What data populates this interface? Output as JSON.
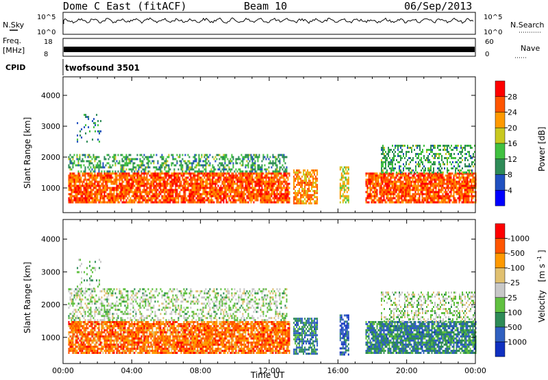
{
  "header": {
    "station": "Dome C East (fitACF)",
    "beam": "Beam 10",
    "date": "06/Sep/2013"
  },
  "status_panels": {
    "nsky_label": "N.Sky",
    "nsky_ticks": [
      "10^5",
      "10^0"
    ],
    "nsearch_label": "N.Search",
    "nsearch_ticks": [
      "10^5",
      "10^0"
    ],
    "freq_label_1": "Freq.",
    "freq_label_2": "[MHz]",
    "freq_ticks": [
      "18",
      "8"
    ],
    "nave_label": "Nave",
    "nave_ticks": [
      "60",
      "0"
    ],
    "cpid_label": "CPID",
    "cpid_value": "twofsound 3501"
  },
  "chart_data": [
    {
      "type": "heatmap",
      "panel": "power",
      "ylabel": "Slant Range [km]",
      "yticks": [
        "1000",
        "2000",
        "3000",
        "4000"
      ],
      "ylim": [
        200,
        4600
      ],
      "x_ticks": [
        "00:00",
        "04:00",
        "08:00",
        "12:00",
        "16:00",
        "20:00",
        "00:00"
      ],
      "xlim_hours": [
        0,
        24
      ],
      "colorbar_label": "Power [dB]",
      "colorbar_ticks": [
        "4",
        "8",
        "12",
        "16",
        "20",
        "24",
        "28"
      ],
      "colorbar_colors": [
        "#0000ff",
        "#2050c0",
        "#2e8b57",
        "#40c040",
        "#c8c820",
        "#ff9900",
        "#ff5500",
        "#ff0000"
      ],
      "scatter_regions": [
        {
          "t_start": 0.3,
          "t_end": 13.2,
          "range_low": 500,
          "range_high": 1500,
          "density": 0.85,
          "bias": 0.85
        },
        {
          "t_start": 0.3,
          "t_end": 13.0,
          "range_low": 1500,
          "range_high": 2100,
          "density": 0.45,
          "bias": 0.35
        },
        {
          "t_start": 13.4,
          "t_end": 14.8,
          "range_low": 500,
          "range_high": 1600,
          "density": 0.7,
          "bias": 0.75
        },
        {
          "t_start": 16.1,
          "t_end": 16.6,
          "range_low": 500,
          "range_high": 1700,
          "density": 0.7,
          "bias": 0.6
        },
        {
          "t_start": 17.6,
          "t_end": 24.0,
          "range_low": 500,
          "range_high": 1500,
          "density": 0.85,
          "bias": 0.85
        },
        {
          "t_start": 18.5,
          "t_end": 24.0,
          "range_low": 1500,
          "range_high": 2400,
          "density": 0.4,
          "bias": 0.35
        },
        {
          "t_start": 0.8,
          "t_end": 2.2,
          "range_low": 2500,
          "range_high": 3400,
          "density": 0.15,
          "bias": 0.3
        }
      ]
    },
    {
      "type": "heatmap",
      "panel": "velocity",
      "ylabel": "Slant Range [km]",
      "yticks": [
        "1000",
        "2000",
        "3000",
        "4000"
      ],
      "ylim": [
        200,
        4600
      ],
      "x_ticks": [
        "00:00",
        "04:00",
        "08:00",
        "12:00",
        "16:00",
        "20:00",
        "00:00"
      ],
      "xlabel": "Time UT",
      "xlim_hours": [
        0,
        24
      ],
      "colorbar_label": "Velocity",
      "colorbar_unit": "[m s",
      "colorbar_unit_exp": "-1",
      "colorbar_unit_close": "]",
      "colorbar_ticks": [
        "1000",
        "500",
        "100",
        "25",
        "-25",
        "-100",
        "-500",
        "-1000"
      ],
      "colorbar_colors": [
        "#1030c0",
        "#3060c0",
        "#2e8b57",
        "#60c040",
        "#c8c8c8",
        "#e0c070",
        "#ff9900",
        "#ff5500",
        "#ff0000"
      ],
      "scatter_regions": [
        {
          "t_start": 0.3,
          "t_end": 13.2,
          "range_low": 500,
          "range_high": 1500,
          "density": 0.85,
          "bias": 0.82
        },
        {
          "t_start": 0.3,
          "t_end": 13.0,
          "range_low": 1500,
          "range_high": 2500,
          "density": 0.4,
          "bias": 0.45
        },
        {
          "t_start": 13.4,
          "t_end": 14.8,
          "range_low": 500,
          "range_high": 1600,
          "density": 0.7,
          "bias": 0.2
        },
        {
          "t_start": 16.1,
          "t_end": 16.6,
          "range_low": 500,
          "range_high": 1700,
          "density": 0.7,
          "bias": 0.1
        },
        {
          "t_start": 17.6,
          "t_end": 24.0,
          "range_low": 500,
          "range_high": 1500,
          "density": 0.85,
          "bias": 0.22
        },
        {
          "t_start": 18.5,
          "t_end": 24.0,
          "range_low": 1500,
          "range_high": 2400,
          "density": 0.4,
          "bias": 0.45
        },
        {
          "t_start": 0.8,
          "t_end": 2.2,
          "range_low": 2500,
          "range_high": 3400,
          "density": 0.15,
          "bias": 0.4
        }
      ]
    }
  ]
}
